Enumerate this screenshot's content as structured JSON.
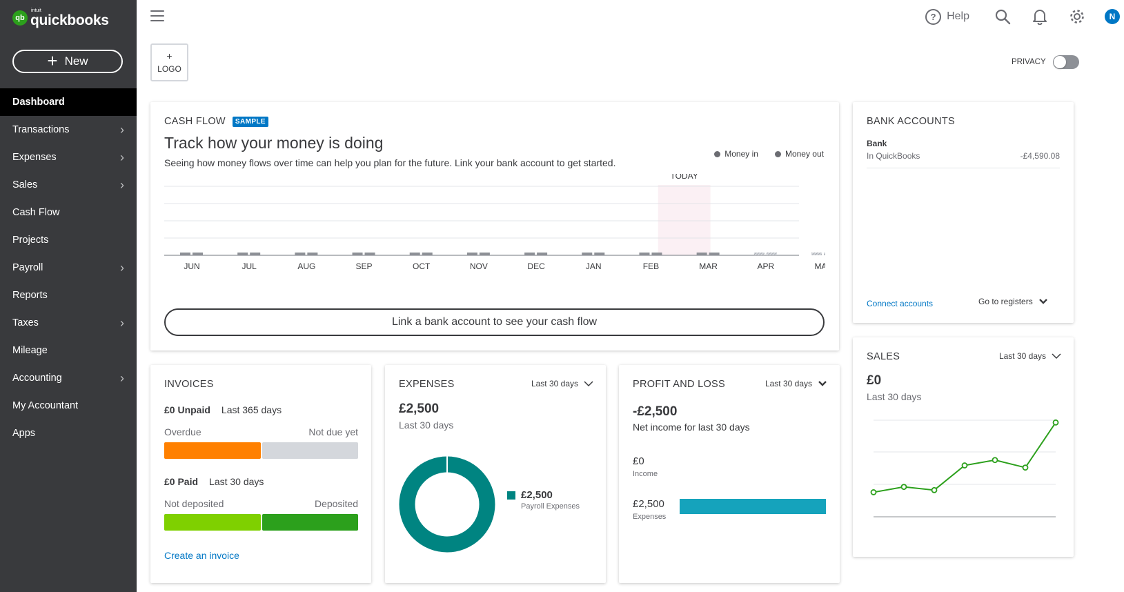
{
  "brand": {
    "small": "intuit",
    "name": "quickbooks",
    "badge": "qb"
  },
  "sidebar": {
    "new_label": "New",
    "items": [
      {
        "label": "Dashboard",
        "has_children": false
      },
      {
        "label": "Transactions",
        "has_children": true
      },
      {
        "label": "Expenses",
        "has_children": true
      },
      {
        "label": "Sales",
        "has_children": true
      },
      {
        "label": "Cash Flow",
        "has_children": false
      },
      {
        "label": "Projects",
        "has_children": false
      },
      {
        "label": "Payroll",
        "has_children": true
      },
      {
        "label": "Reports",
        "has_children": false
      },
      {
        "label": "Taxes",
        "has_children": true
      },
      {
        "label": "Mileage",
        "has_children": false
      },
      {
        "label": "Accounting",
        "has_children": true
      },
      {
        "label": "My Accountant",
        "has_children": false
      },
      {
        "label": "Apps",
        "has_children": false
      }
    ]
  },
  "topbar": {
    "help_label": "Help",
    "help_glyph": "?",
    "avatar_initial": "N"
  },
  "logo_box": {
    "plus": "+",
    "label": "LOGO"
  },
  "privacy": {
    "label": "PRIVACY",
    "on": false
  },
  "cash_flow": {
    "title": "CASH FLOW",
    "badge": "SAMPLE",
    "heading": "Track how your money is doing",
    "subtitle": "Seeing how money flows over time can help you plan for the future. Link your bank account to get started.",
    "legend_in": "Money in",
    "legend_out": "Money out",
    "today_label": "TODAY",
    "months": [
      "JUN",
      "JUL",
      "AUG",
      "SEP",
      "OCT",
      "NOV",
      "DEC",
      "JAN",
      "FEB",
      "MAR",
      "APR",
      "MAY"
    ],
    "today_index": 9,
    "button_label": "Link a bank account to see your cash flow"
  },
  "bank_accounts": {
    "title": "BANK ACCOUNTS",
    "bank_name": "Bank",
    "account_label": "In QuickBooks",
    "account_value": "-£4,590.08",
    "connect_label": "Connect accounts",
    "registers_label": "Go to registers"
  },
  "sales": {
    "title": "SALES",
    "range": "Last 30 days",
    "amount": "£0",
    "subtitle": "Last 30 days",
    "trend": [
      1,
      1.5,
      1.2,
      3.5,
      4,
      3.3,
      7.5
    ]
  },
  "invoices": {
    "title": "INVOICES",
    "unpaid_amount": "£0 Unpaid",
    "unpaid_range": "Last 365 days",
    "overdue_label": "Overdue",
    "not_due_label": "Not due yet",
    "paid_amount": "£0 Paid",
    "paid_range": "Last 30 days",
    "not_deposited_label": "Not deposited",
    "deposited_label": "Deposited",
    "create_label": "Create an invoice",
    "colors": {
      "overdue": "#ff8000",
      "not_due": "#d4d7dc",
      "not_deposited": "#7fd000",
      "deposited": "#2ca01c"
    }
  },
  "expenses": {
    "title": "EXPENSES",
    "range": "Last 30 days",
    "amount": "£2,500",
    "subtitle": "Last 30 days",
    "legend_value": "£2,500",
    "legend_category": "Payroll Expenses",
    "color": "#008481"
  },
  "profit_loss": {
    "title": "PROFIT AND LOSS",
    "range": "Last 30 days",
    "amount": "-£2,500",
    "subtitle": "Net income for last 30 days",
    "income_value": "£0",
    "income_label": "Income",
    "expenses_value": "£2,500",
    "expenses_label": "Expenses"
  }
}
